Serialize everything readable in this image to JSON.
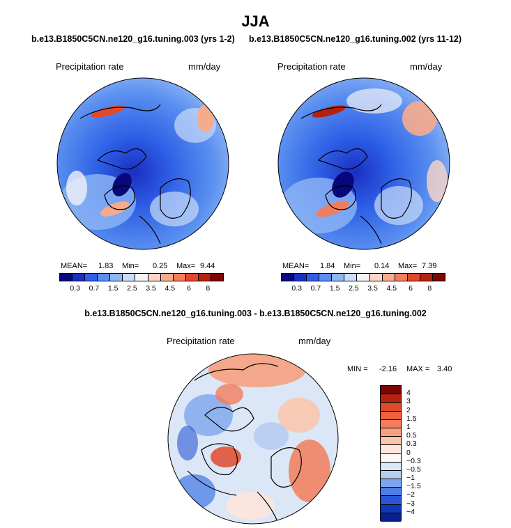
{
  "title": "JJA",
  "panels": [
    {
      "case": "b.e13.B1850C5CN.ne120_g16.tuning.003 (yrs 1-2)",
      "var_label": "Precipitation rate",
      "units": "mm/day",
      "mean_label": "MEAN=",
      "mean": "1.83",
      "min_label": "Min=",
      "min": "0.25",
      "max_label": "Max=",
      "max": "9.44"
    },
    {
      "case": "b.e13.B1850C5CN.ne120_g16.tuning.002 (yrs 11-12)",
      "var_label": "Precipitation rate",
      "units": "mm/day",
      "mean_label": "MEAN=",
      "mean": "1.84",
      "min_label": "Min=",
      "min": "0.14",
      "max_label": "Max=",
      "max": "7.39"
    }
  ],
  "colorbar_abs": {
    "ticks": [
      "0.3",
      "0.7",
      "1.5",
      "2.5",
      "3.5",
      "4.5",
      "6",
      "8"
    ],
    "colors": [
      "#08087a",
      "#1a2fc2",
      "#2e5fe6",
      "#5a8ff0",
      "#8fb6f5",
      "#c9dcf8",
      "#f2f2f7",
      "#fbd6c6",
      "#f7ab8d",
      "#f27d5c",
      "#e04a2b",
      "#b5200f",
      "#7a0606"
    ]
  },
  "diff": {
    "title": "b.e13.B1850C5CN.ne120_g16.tuning.003 - b.e13.B1850C5CN.ne120_g16.tuning.002",
    "var_label": "Precipitation rate",
    "units": "mm/day",
    "min_label": "MIN =",
    "min": "-2.16",
    "max_label": "MAX =",
    "max": "3.40",
    "ticks": [
      "4",
      "3",
      "2",
      "1.5",
      "1",
      "0.5",
      "0.3",
      "0",
      "−0.3",
      "−0.5",
      "−1",
      "−1.5",
      "−2",
      "−3",
      "−4"
    ],
    "colors": [
      "#7a0606",
      "#b5200f",
      "#e04a2b",
      "#f0603c",
      "#f27d5c",
      "#f7a080",
      "#fac6ad",
      "#fde6da",
      "#fbf7f2",
      "#dbe6f7",
      "#b5cdf2",
      "#7da6ee",
      "#4c7ee6",
      "#2a56d6",
      "#1238b8",
      "#0b1f8e"
    ]
  }
}
